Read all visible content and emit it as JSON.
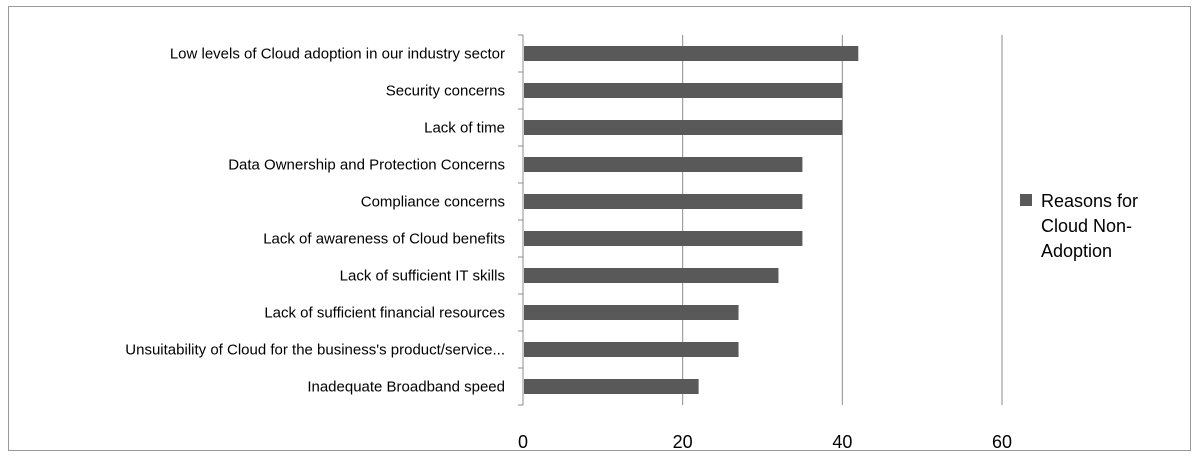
{
  "chart_data": {
    "type": "bar",
    "orientation": "horizontal",
    "categories": [
      "Low levels of Cloud adoption in our industry sector",
      "Security concerns",
      "Lack of time",
      "Data Ownership and Protection Concerns",
      "Compliance concerns",
      "Lack of awareness of Cloud benefits",
      "Lack of sufficient IT skills",
      "Lack of sufficient financial resources",
      "Unsuitability of Cloud for the business's product/service...",
      "Inadequate Broadband speed"
    ],
    "series": [
      {
        "name": "Reasons for Cloud Non-Adoption",
        "values": [
          42,
          40,
          40,
          35,
          35,
          35,
          32,
          27,
          27,
          22
        ],
        "color": "#595959"
      }
    ],
    "title": "",
    "xlabel": "",
    "ylabel": "",
    "xlim": [
      0,
      60
    ],
    "x_ticks": [
      "0",
      "20",
      "40",
      "60"
    ],
    "grid": true,
    "legend": {
      "position": "right",
      "lines": [
        "Reasons for",
        "Cloud Non-",
        "Adoption"
      ]
    }
  }
}
